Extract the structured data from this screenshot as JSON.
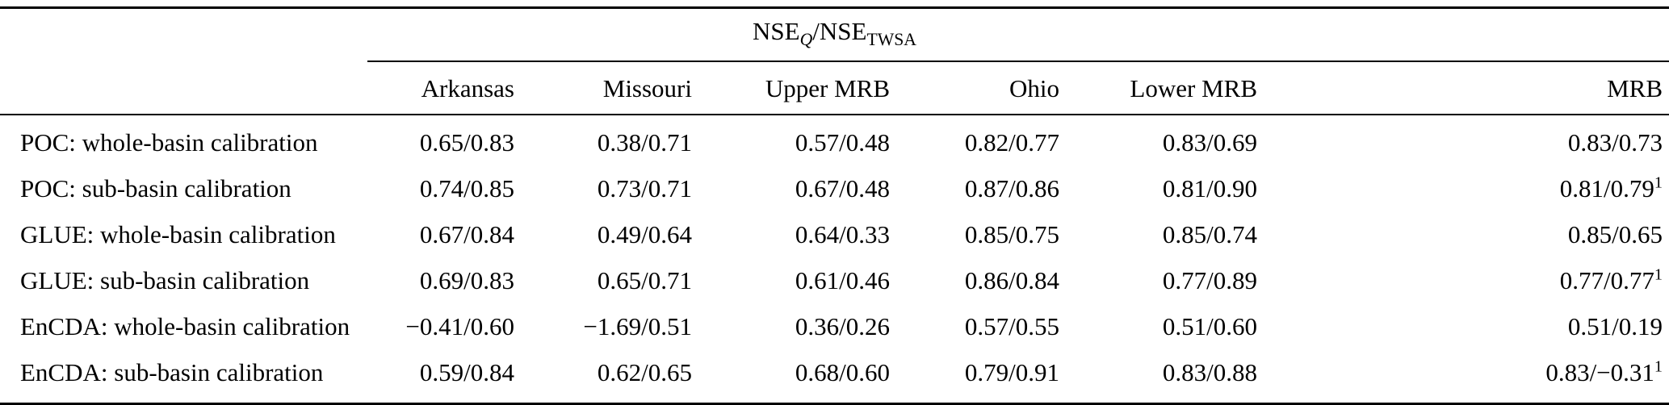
{
  "table": {
    "group_header": {
      "part1": "NSE",
      "sub1": "Q",
      "part2": "/NSE",
      "sub2": "TWSA"
    },
    "columns": [
      "Arkansas",
      "Missouri",
      "Upper MRB",
      "Ohio",
      "Lower MRB",
      "MRB"
    ],
    "rows": [
      {
        "label": "POC: whole-basin calibration",
        "values": [
          "0.65/0.83",
          "0.38/0.71",
          "0.57/0.48",
          "0.82/0.77",
          "0.83/0.69",
          "0.83/0.73"
        ],
        "sup": ""
      },
      {
        "label": "POC: sub-basin calibration",
        "values": [
          "0.74/0.85",
          "0.73/0.71",
          "0.67/0.48",
          "0.87/0.86",
          "0.81/0.90",
          "0.81/0.79"
        ],
        "sup": "1"
      },
      {
        "label": "GLUE: whole-basin calibration",
        "values": [
          "0.67/0.84",
          "0.49/0.64",
          "0.64/0.33",
          "0.85/0.75",
          "0.85/0.74",
          "0.85/0.65"
        ],
        "sup": ""
      },
      {
        "label": "GLUE: sub-basin calibration",
        "values": [
          "0.69/0.83",
          "0.65/0.71",
          "0.61/0.46",
          "0.86/0.84",
          "0.77/0.89",
          "0.77/0.77"
        ],
        "sup": "1"
      },
      {
        "label": "EnCDA: whole-basin calibration",
        "values": [
          "−0.41/0.60",
          "−1.69/0.51",
          "0.36/0.26",
          "0.57/0.55",
          "0.51/0.60",
          "0.51/0.19"
        ],
        "sup": ""
      },
      {
        "label": "EnCDA: sub-basin calibration",
        "values": [
          "0.59/0.84",
          "0.62/0.65",
          "0.68/0.60",
          "0.79/0.91",
          "0.83/0.88",
          "0.83/−0.31"
        ],
        "sup": "1"
      }
    ]
  }
}
